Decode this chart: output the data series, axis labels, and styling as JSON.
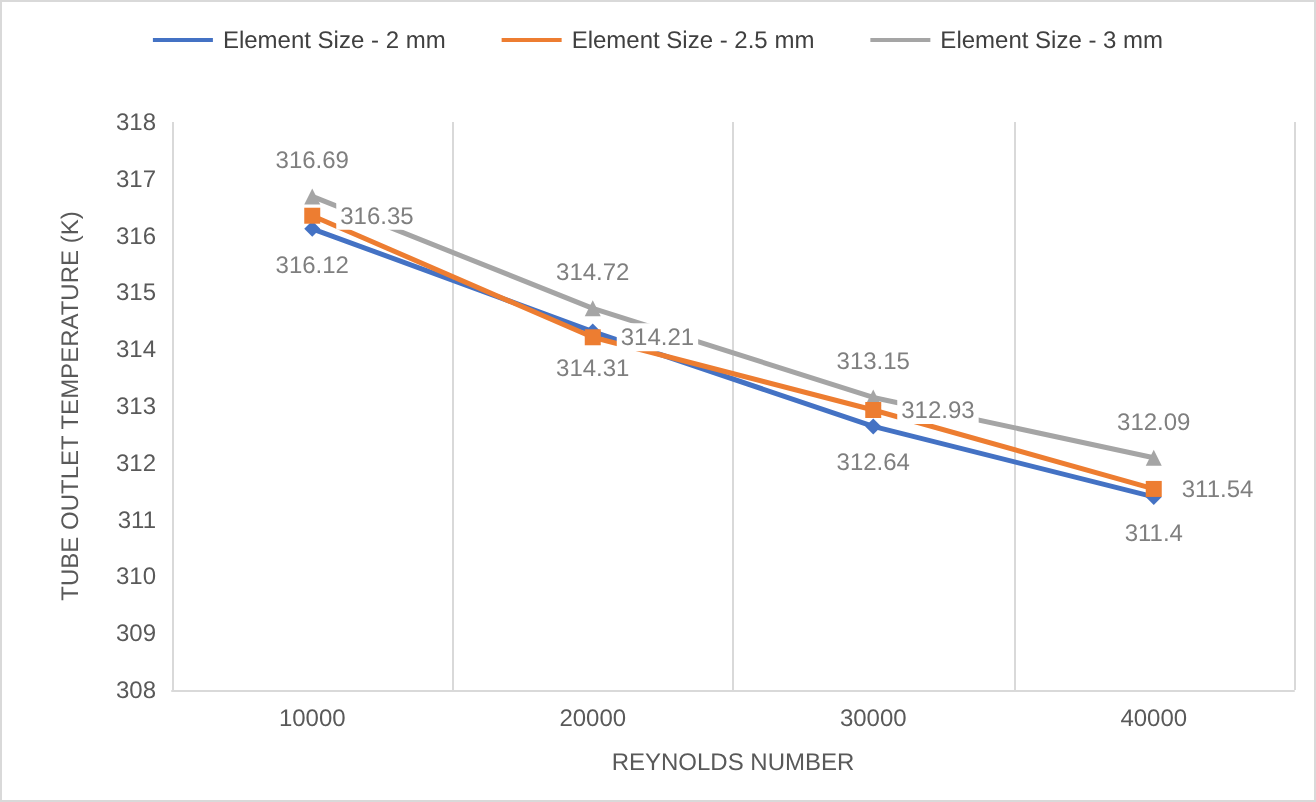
{
  "chart_data": {
    "type": "line",
    "xlabel": "REYNOLDS NUMBER",
    "ylabel": "TUBE OUTLET TEMPERATURE (K)",
    "categories": [
      "10000",
      "20000",
      "30000",
      "40000"
    ],
    "series": [
      {
        "name": "Element Size - 2 mm",
        "color": "#4472c4",
        "marker": "diamond",
        "values": [
          316.12,
          314.31,
          312.64,
          311.4
        ]
      },
      {
        "name": "Element Size - 2.5 mm",
        "color": "#ed7d31",
        "marker": "square",
        "values": [
          316.35,
          314.21,
          312.93,
          311.54
        ]
      },
      {
        "name": "Element Size - 3 mm",
        "color": "#a5a5a5",
        "marker": "triangle",
        "values": [
          316.69,
          314.72,
          313.15,
          312.09
        ]
      }
    ],
    "ylim": [
      308,
      318
    ],
    "yticks": [
      308,
      309,
      310,
      311,
      312,
      313,
      314,
      315,
      316,
      317,
      318
    ],
    "grid": "x",
    "legend": "top",
    "data_labels": true
  }
}
